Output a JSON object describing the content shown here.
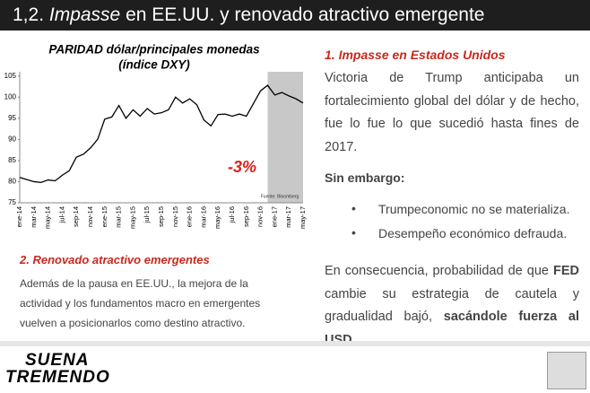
{
  "header": {
    "number": "1,2.",
    "italic": "Impasse",
    "rest": "en EE.UU. y renovado atractivo emergente"
  },
  "chart_data": {
    "type": "line",
    "title": "PARIDAD dólar/principales monedas",
    "subtitle": "(índice DXY)",
    "categories": [
      "ene-14",
      null,
      "mar-14",
      null,
      "may-14",
      null,
      "jul-14",
      null,
      "sep-14",
      null,
      "nov-14",
      null,
      "ene-15",
      null,
      "mar-15",
      null,
      "may-15",
      null,
      "jul-15",
      null,
      "sep-15",
      null,
      "nov-15",
      null,
      "ene-16",
      null,
      "mar-16",
      null,
      "may-16",
      null,
      "jul-16",
      null,
      "sep-16",
      null,
      "nov-16",
      null,
      "ene-17",
      null,
      "mar-17",
      null,
      "may-17"
    ],
    "series": [
      {
        "name": "DXY",
        "color": "#000000",
        "values": [
          81,
          80.5,
          80,
          79.8,
          80.4,
          80.2,
          81.5,
          82.6,
          85.8,
          86.5,
          88,
          90,
          94.8,
          95.3,
          98,
          95,
          97,
          95.5,
          97.3,
          96,
          96.3,
          97,
          100,
          98.6,
          99.6,
          98.2,
          94.6,
          93.2,
          95.9,
          96,
          95.5,
          96,
          95.5,
          98.5,
          101.5,
          102.8,
          100.5,
          101.1,
          100.3,
          99.6,
          98.6
        ]
      }
    ],
    "ylim": [
      75,
      106
    ],
    "yticks": [
      75,
      80,
      85,
      90,
      95,
      100,
      105
    ],
    "annotation": "-3%",
    "source": "Fuente: Bloomberg"
  },
  "left": {
    "heading": "2. Renovado atractivo emergentes",
    "text": "Además de la pausa en EE.UU., la mejora de la actividad y los fundamentos macro en emergentes vuelven a posicionarlos como destino atractivo."
  },
  "right": {
    "heading": "1. Impasse en Estados Unidos",
    "text": "Victoria de Trump anticipaba un fortalecimiento global del dólar y de hecho, fue lo fue lo que sucedió hasta fines de 2017.",
    "subheading": "Sin embargo:",
    "bullets": [
      "Trumpeconomic no se materializa.",
      "Desempeño económico defrauda."
    ],
    "conclusion": [
      "En consecuencia, probabilidad de que ",
      "FED",
      " cambie su estrategia de cautela y gradualidad bajó, ",
      "sacándole fuerza al USD."
    ]
  },
  "footer": {
    "logo": [
      "SUENA",
      "TREMENDO"
    ]
  }
}
